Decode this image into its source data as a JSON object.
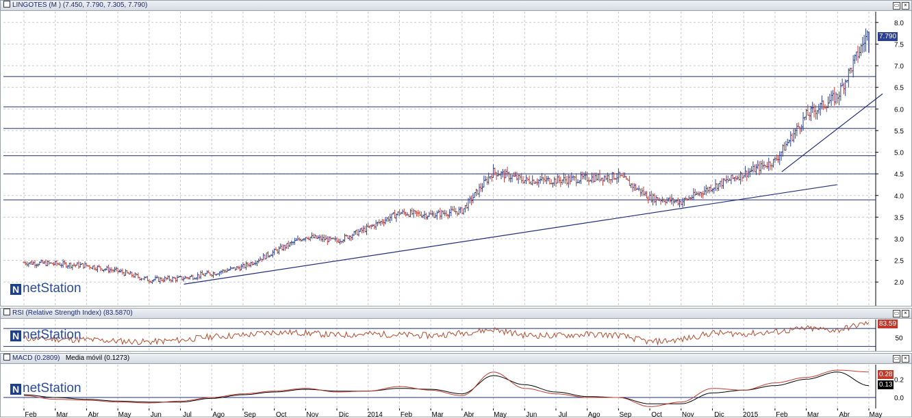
{
  "main_panel": {
    "title": "LINGOTES (M ) (7.450, 7.790, 7.305, 7.790)",
    "last_price": "7.790",
    "y_ticks": [
      "8.0",
      "7.5",
      "7.0",
      "6.5",
      "6.0",
      "5.5",
      "5.0",
      "4.5",
      "4.0",
      "3.5",
      "3.0",
      "2.5",
      "2.0"
    ],
    "logo": "netStation"
  },
  "rsi_panel": {
    "title": "RSI (Relative Strength Index) (83.5870)",
    "last_value": "83.59",
    "y_ticks": [
      "50"
    ],
    "logo": "netStation"
  },
  "macd_panel": {
    "title": "MACD (0.2809)",
    "title2": "Media móvil (0.1273)",
    "macd_value": "0.28",
    "signal_value": "0.13",
    "y_ticks": [
      "0.2",
      "0.0"
    ],
    "logo": "netStation"
  },
  "x_axis": {
    "labels": [
      "Feb",
      "Mar",
      "Abr",
      "May",
      "Jun",
      "Jul",
      "Ago",
      "Sep",
      "Oct",
      "Nov",
      "Dic",
      "2014",
      "Feb",
      "Mar",
      "Abr",
      "May",
      "Jun",
      "Jul",
      "Ago",
      "Sep",
      "Oct",
      "Nov",
      "Dic",
      "2015",
      "Feb",
      "Mar",
      "Abr",
      "May"
    ]
  },
  "colors": {
    "up_bar": "#2a3f8f",
    "down_bar": "#c0392b",
    "trendline": "#1f2e7a",
    "rsi_line": "#b5482a",
    "macd_line": "#c0392b",
    "signal_line": "#000000",
    "last_price_tag": "#2a3f8f",
    "rsi_tag": "#c0392b"
  },
  "chart_data": [
    {
      "type": "line",
      "series": [
        {
          "name": "LINGOTES",
          "x": [
            "Feb",
            "Mar",
            "Abr",
            "May",
            "Jun",
            "Jul",
            "Ago",
            "Sep",
            "Oct",
            "Nov",
            "Dic",
            "2014",
            "Feb",
            "Mar",
            "Abr",
            "May",
            "Jun",
            "Jul",
            "Ago",
            "Sep",
            "Oct",
            "Nov",
            "Dic",
            "2015",
            "Feb",
            "Mar",
            "Abr",
            "May"
          ],
          "values": [
            2.45,
            2.42,
            2.38,
            2.25,
            2.05,
            2.08,
            2.2,
            2.35,
            2.7,
            3.05,
            2.95,
            3.25,
            3.6,
            3.55,
            3.65,
            4.55,
            4.35,
            4.35,
            4.4,
            4.45,
            3.95,
            3.85,
            4.2,
            4.5,
            4.8,
            5.85,
            6.3,
            7.79
          ]
        }
      ],
      "horizontal_lines": [
        6.75,
        6.05,
        5.55,
        4.92,
        4.5,
        3.9
      ],
      "ylim": [
        1.45,
        8.25
      ]
    },
    {
      "type": "line",
      "series": [
        {
          "name": "RSI",
          "values": [
            48,
            46,
            45,
            42,
            40,
            44,
            52,
            55,
            62,
            60,
            55,
            58,
            56,
            54,
            60,
            68,
            55,
            54,
            57,
            55,
            40,
            45,
            60,
            58,
            62,
            70,
            66,
            83.59
          ]
        }
      ],
      "y_ticks": [
        50
      ]
    },
    {
      "type": "line",
      "series": [
        {
          "name": "MACD",
          "values": [
            0.02,
            -0.02,
            -0.03,
            -0.05,
            -0.06,
            -0.04,
            0.0,
            0.04,
            0.07,
            0.1,
            0.06,
            0.07,
            0.12,
            0.08,
            0.02,
            0.28,
            0.1,
            0.04,
            0.0,
            0.0,
            -0.1,
            -0.05,
            0.1,
            0.08,
            0.16,
            0.22,
            0.3,
            0.28
          ]
        },
        {
          "name": "Media móvil",
          "values": [
            0.03,
            0.0,
            -0.02,
            -0.04,
            -0.05,
            -0.05,
            -0.01,
            0.03,
            0.06,
            0.09,
            0.07,
            0.07,
            0.1,
            0.09,
            0.04,
            0.24,
            0.14,
            0.06,
            0.01,
            0.0,
            -0.07,
            -0.07,
            0.05,
            0.08,
            0.13,
            0.2,
            0.28,
            0.13
          ]
        }
      ],
      "y_ticks": [
        0.2,
        0.0
      ]
    }
  ]
}
